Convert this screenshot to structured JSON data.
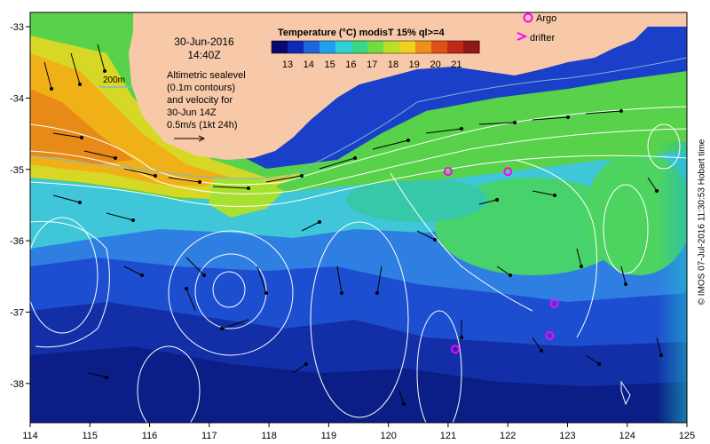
{
  "map": {
    "date": "30-Jun-2016",
    "time": "14:40Z",
    "scale_label": "200m",
    "description_lines": [
      "Altimetric sealevel",
      "(0.1m contours)",
      "and velocity for",
      "30-Jun 14Z",
      "0.5m/s (1kt 24h)"
    ],
    "colorbar": {
      "title": "Temperature (°C) modisT 15% ql>=4",
      "ticks": [
        "13",
        "14",
        "15",
        "16",
        "17",
        "18",
        "19",
        "20",
        "21"
      ],
      "colors": [
        "#08086e",
        "#1028b4",
        "#1e64dc",
        "#20a0f0",
        "#30d0d8",
        "#38d888",
        "#70dc40",
        "#b8e028",
        "#f0d020",
        "#f09018",
        "#e05018",
        "#c02818",
        "#901818"
      ]
    },
    "legend": {
      "argo_label": "Argo",
      "drifter_label": "drifter",
      "argo_color": "#ff00ff"
    },
    "credit": "© IMOS 07-Jul-2016 11:30:53 Hobart time",
    "x_ticks": [
      "114",
      "115",
      "116",
      "117",
      "118",
      "119",
      "120",
      "121",
      "122",
      "123",
      "124",
      "125"
    ],
    "y_ticks": [
      "-33",
      "-34",
      "-35",
      "-36",
      "-37",
      "-38"
    ],
    "colors": {
      "land": "#f7c9a8",
      "contour": "#ffffff",
      "arrow": "#000000"
    },
    "argo_floats": [
      {
        "lon": 121.0,
        "lat": -35.03
      },
      {
        "lon": 122.0,
        "lat": -35.03
      },
      {
        "lon": 122.78,
        "lat": -36.88
      },
      {
        "lon": 122.7,
        "lat": -37.33
      },
      {
        "lon": 121.12,
        "lat": -37.52
      }
    ]
  }
}
